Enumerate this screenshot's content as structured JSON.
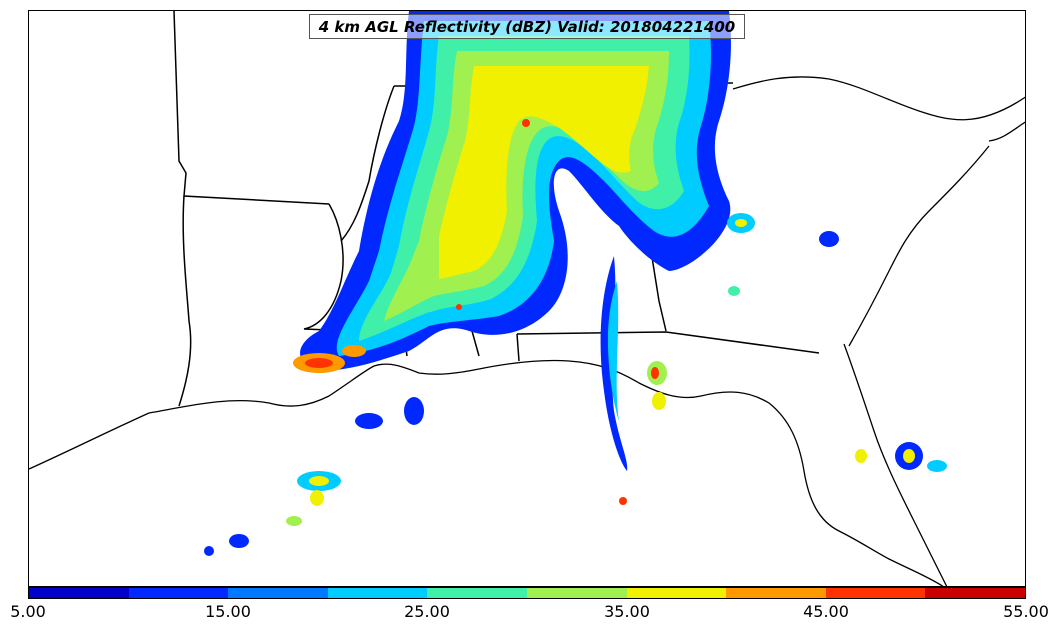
{
  "title": "4 km AGL Reflectivity (dBZ) Valid: 201804221400",
  "colorbar": {
    "tick_labels": [
      "5.00",
      "15.00",
      "25.00",
      "35.00",
      "45.00",
      "55.00"
    ],
    "colors": [
      "#0000c8",
      "#0028ff",
      "#0078ff",
      "#00ccff",
      "#40f0a8",
      "#a0f050",
      "#f0f000",
      "#ff9900",
      "#ff3300",
      "#c80000"
    ]
  },
  "map": {
    "region": "Southeastern United States",
    "layers": [
      "coastline",
      "state-borders",
      "radar-reflectivity"
    ]
  }
}
